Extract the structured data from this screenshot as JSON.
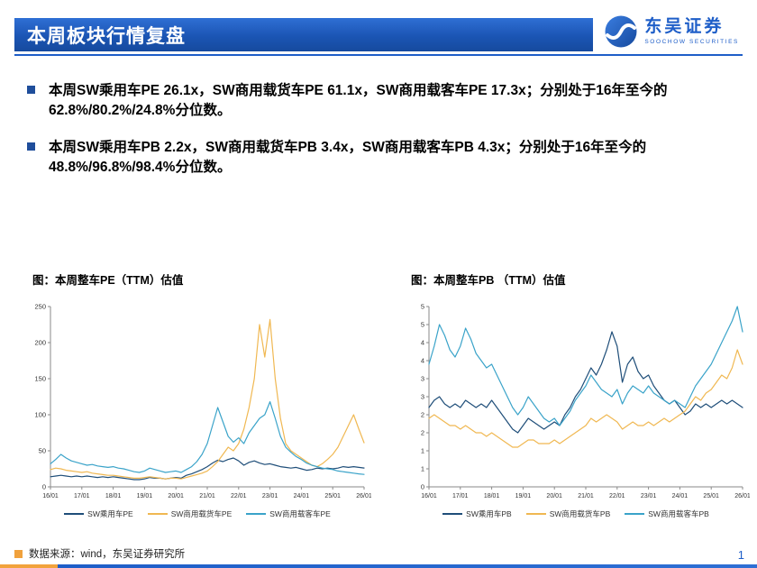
{
  "header": {
    "title": "本周板块行情复盘"
  },
  "logo": {
    "name": "东吴证券",
    "subtitle": "SOOCHOW SECURITIES"
  },
  "bullets": [
    "本周SW乘用车PE 26.1x，SW商用载货车PE 61.1x，SW商用载客车PE 17.3x；分别处于16年至今的62.8%/80.2%/24.8%分位数。",
    "本周SW乘用车PB 2.2x，SW商用载货车PB 3.4x，SW商用载客车PB 4.3x；分别处于16年至今的48.8%/96.8%/98.4%分位数。"
  ],
  "footer": {
    "source": "数据来源：wind，东吴证券研究所",
    "page": "1"
  },
  "colors": {
    "accent_blue": "#1e5ec8",
    "dark_blue": "#1f4e79",
    "orange": "#f0b852",
    "light_blue": "#3aa3c9"
  },
  "chart_data": [
    {
      "type": "line",
      "title": "图：本周整车PE（TTM）估值",
      "x_labels": [
        "16/01",
        "17/01",
        "18/01",
        "19/01",
        "20/01",
        "21/01",
        "22/01",
        "23/01",
        "24/01",
        "25/01",
        "26/01"
      ],
      "ylim": [
        0,
        250
      ],
      "ytick_values": [
        0,
        50,
        100,
        150,
        200,
        250
      ],
      "ytick_labels": [
        "0",
        "50",
        "100",
        "150",
        "200",
        "250"
      ],
      "legend_position": "bottom",
      "grid": false,
      "series": [
        {
          "name": "SW乘用车PE",
          "color": "#1f4e79",
          "values": [
            14,
            15,
            16,
            15,
            14,
            15,
            14,
            15,
            14,
            13,
            14,
            13,
            14,
            13,
            12,
            11,
            10,
            10,
            11,
            13,
            12,
            12,
            11,
            12,
            13,
            12,
            16,
            18,
            21,
            24,
            28,
            33,
            37,
            35,
            38,
            40,
            36,
            30,
            34,
            36,
            33,
            31,
            32,
            30,
            28,
            27,
            26,
            27,
            25,
            23,
            24,
            26,
            25,
            26,
            25,
            26,
            28,
            27,
            28,
            27,
            26.1
          ]
        },
        {
          "name": "SW商用载货车PE",
          "color": "#f0b852",
          "values": [
            24,
            26,
            25,
            23,
            22,
            21,
            20,
            21,
            19,
            18,
            17,
            16,
            16,
            15,
            14,
            13,
            12,
            12,
            13,
            14,
            13,
            12,
            11,
            12,
            12,
            11,
            13,
            15,
            17,
            19,
            22,
            28,
            35,
            45,
            55,
            50,
            60,
            80,
            110,
            150,
            225,
            180,
            232,
            150,
            95,
            60,
            50,
            45,
            40,
            35,
            30,
            28,
            32,
            38,
            45,
            55,
            70,
            85,
            100,
            80,
            61.1
          ]
        },
        {
          "name": "SW商用载客车PE",
          "color": "#3aa3c9",
          "values": [
            32,
            38,
            45,
            40,
            36,
            34,
            32,
            30,
            31,
            29,
            28,
            27,
            28,
            26,
            25,
            23,
            21,
            20,
            22,
            26,
            24,
            22,
            20,
            21,
            22,
            20,
            24,
            28,
            35,
            45,
            60,
            85,
            110,
            90,
            70,
            62,
            68,
            60,
            75,
            85,
            95,
            100,
            118,
            95,
            70,
            55,
            48,
            42,
            38,
            33,
            30,
            28,
            26,
            25,
            24,
            22,
            21,
            20,
            19,
            18,
            17.3
          ]
        }
      ]
    },
    {
      "type": "line",
      "title": "图：本周整车PB （TTM）估值",
      "x_labels": [
        "16/01",
        "17/01",
        "18/01",
        "19/01",
        "20/01",
        "21/01",
        "22/01",
        "23/01",
        "24/01",
        "25/01",
        "26/01"
      ],
      "ylim": [
        0,
        5
      ],
      "ytick_values": [
        0,
        0.5,
        1,
        1.5,
        2,
        2.5,
        3,
        3.5,
        4,
        4.5,
        5
      ],
      "ytick_labels": [
        "0",
        "1",
        "1",
        "2",
        "2",
        "3",
        "3",
        "4",
        "4",
        "5",
        "5"
      ],
      "legend_position": "bottom",
      "grid": false,
      "series": [
        {
          "name": "SW乘用车PB",
          "color": "#1f4e79",
          "values": [
            2.2,
            2.4,
            2.5,
            2.3,
            2.2,
            2.3,
            2.2,
            2.4,
            2.3,
            2.2,
            2.3,
            2.2,
            2.4,
            2.2,
            2.0,
            1.8,
            1.6,
            1.5,
            1.7,
            1.9,
            1.8,
            1.7,
            1.6,
            1.7,
            1.8,
            1.7,
            2.0,
            2.2,
            2.5,
            2.7,
            3.0,
            3.3,
            3.1,
            3.4,
            3.8,
            4.3,
            3.9,
            2.9,
            3.4,
            3.6,
            3.2,
            3.0,
            3.1,
            2.8,
            2.6,
            2.4,
            2.3,
            2.4,
            2.2,
            2.0,
            2.1,
            2.3,
            2.2,
            2.3,
            2.2,
            2.3,
            2.4,
            2.3,
            2.4,
            2.3,
            2.2
          ]
        },
        {
          "name": "SW商用载货车PB",
          "color": "#f0b852",
          "values": [
            1.9,
            2.0,
            1.9,
            1.8,
            1.7,
            1.7,
            1.6,
            1.7,
            1.6,
            1.5,
            1.5,
            1.4,
            1.5,
            1.4,
            1.3,
            1.2,
            1.1,
            1.1,
            1.2,
            1.3,
            1.3,
            1.2,
            1.2,
            1.2,
            1.3,
            1.2,
            1.3,
            1.4,
            1.5,
            1.6,
            1.7,
            1.9,
            1.8,
            1.9,
            2.0,
            1.9,
            1.8,
            1.6,
            1.7,
            1.8,
            1.7,
            1.7,
            1.8,
            1.7,
            1.8,
            1.9,
            1.8,
            1.9,
            2.0,
            2.1,
            2.3,
            2.5,
            2.4,
            2.6,
            2.7,
            2.9,
            3.1,
            3.0,
            3.3,
            3.8,
            3.4
          ]
        },
        {
          "name": "SW商用载客车PB",
          "color": "#3aa3c9",
          "values": [
            3.4,
            3.9,
            4.5,
            4.2,
            3.8,
            3.6,
            3.9,
            4.4,
            4.1,
            3.7,
            3.5,
            3.3,
            3.4,
            3.1,
            2.8,
            2.5,
            2.2,
            2.0,
            2.2,
            2.5,
            2.3,
            2.1,
            1.9,
            1.8,
            1.9,
            1.7,
            1.9,
            2.1,
            2.4,
            2.6,
            2.8,
            3.1,
            2.9,
            2.7,
            2.6,
            2.5,
            2.7,
            2.3,
            2.6,
            2.8,
            2.7,
            2.6,
            2.8,
            2.6,
            2.5,
            2.4,
            2.3,
            2.4,
            2.3,
            2.2,
            2.5,
            2.8,
            3.0,
            3.2,
            3.4,
            3.7,
            4.0,
            4.3,
            4.6,
            5.0,
            4.3
          ]
        }
      ]
    }
  ]
}
